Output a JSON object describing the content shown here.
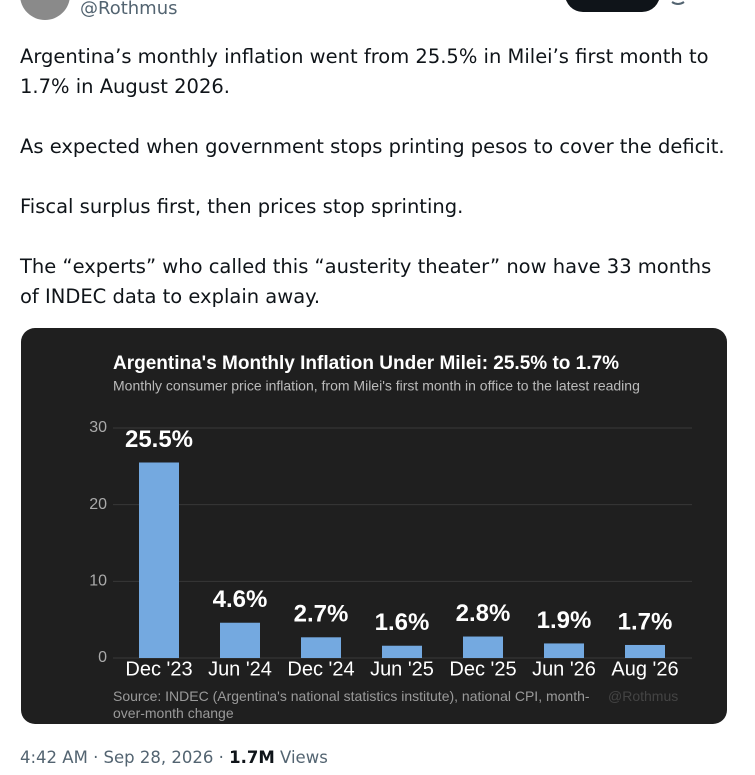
{
  "header": {
    "handle": "@Rothmus"
  },
  "tweet": {
    "paragraphs": [
      "Argentina’s monthly inflation went from 25.5% in Milei’s first month to 1.7% in August 2026.",
      "As expected when government stops printing pesos to cover the deficit.",
      "Fiscal surplus first, then prices stop sprinting.",
      "The “experts” who called this “austerity theater” now have 33 months of INDEC data to explain away."
    ]
  },
  "chart_data": {
    "type": "bar",
    "title": "Argentina's Monthly Inflation Under Milei: 25.5% to 1.7%",
    "subtitle": "Monthly consumer price inflation, from Milei's first month in office to the latest reading",
    "categories": [
      "Dec '23",
      "Jun '24",
      "Dec '24",
      "Jun '25",
      "Dec '25",
      "Jun '26",
      "Aug '26"
    ],
    "values": [
      25.5,
      4.6,
      2.7,
      1.6,
      2.8,
      1.9,
      1.7
    ],
    "value_labels": [
      "25.5%",
      "4.6%",
      "2.7%",
      "1.6%",
      "2.8%",
      "1.9%",
      "1.7%"
    ],
    "color": "#74a9e0",
    "ylim": [
      0,
      30
    ],
    "yticks": [
      0,
      10,
      20,
      30
    ],
    "grid": true,
    "source": "Source: INDEC (Argentina's national statistics institute), national CPI, month-over-month change",
    "watermark": "@Rothmus"
  },
  "footer": {
    "timestamp": "4:42 AM · Sep 28, 2026",
    "views_count": "1.7M",
    "views_label": "Views"
  }
}
